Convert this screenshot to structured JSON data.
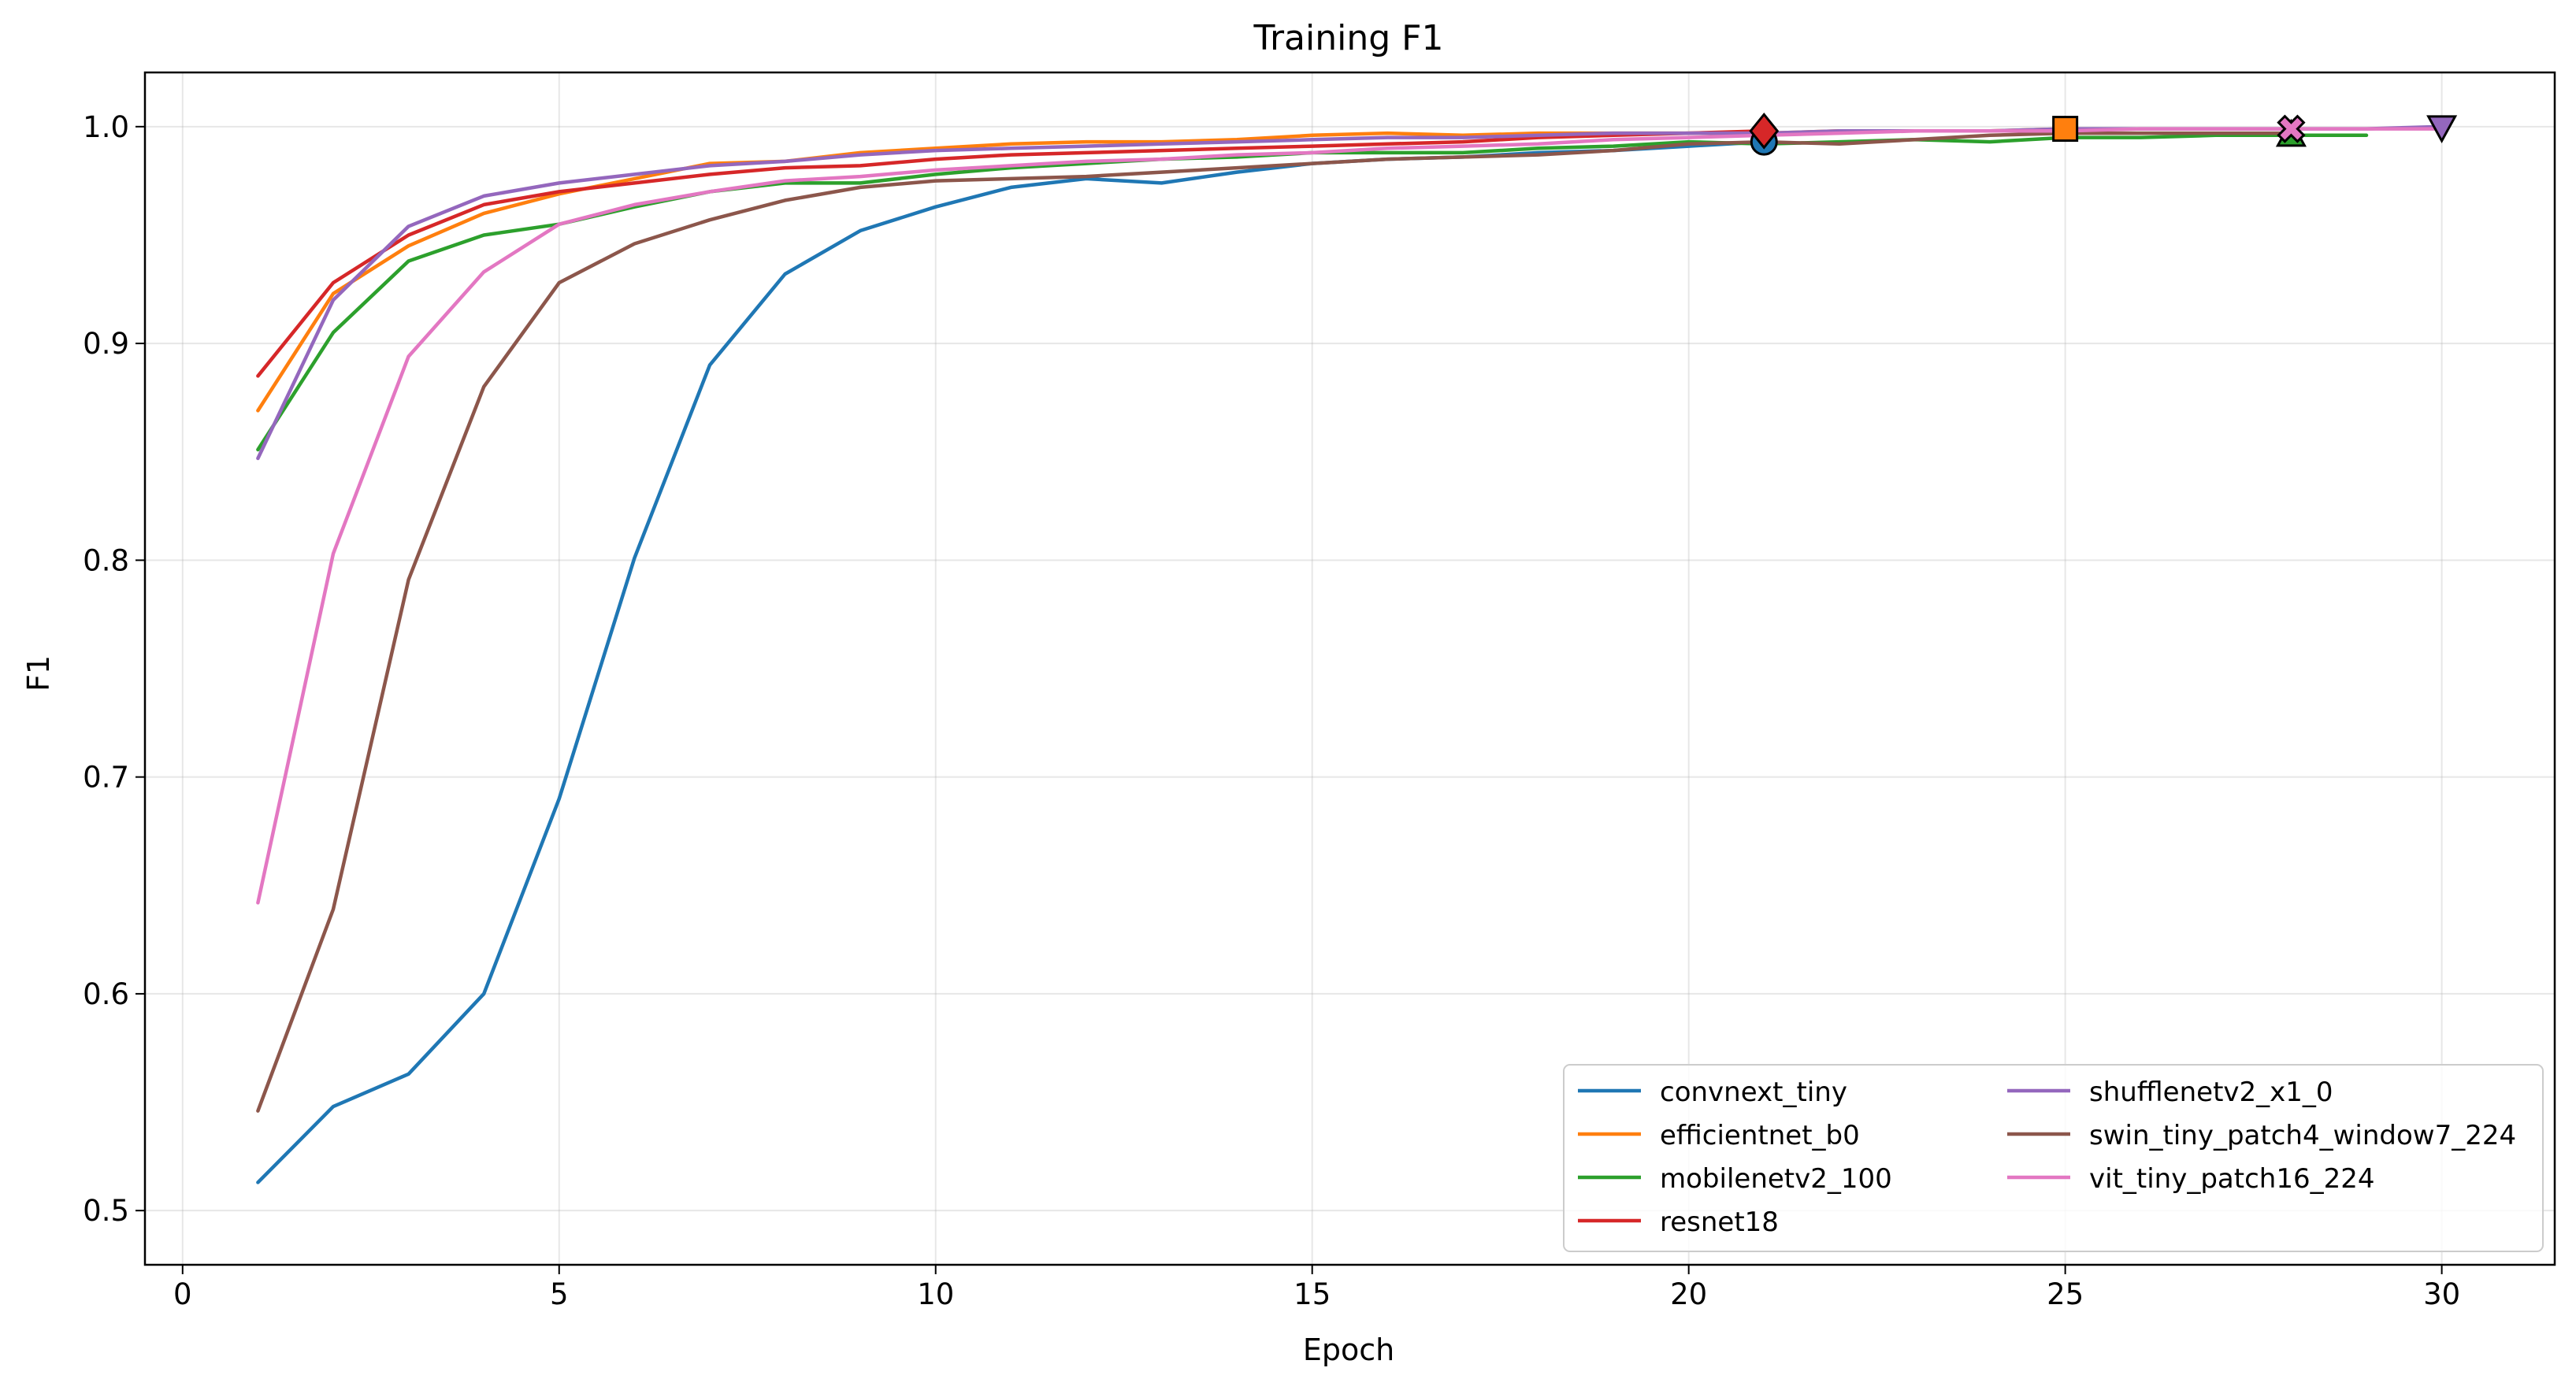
{
  "chart_data": {
    "type": "line",
    "title": "Training F1",
    "xlabel": "Epoch",
    "ylabel": "F1",
    "xlim": [
      -0.5,
      31.5
    ],
    "ylim": [
      0.475,
      1.025
    ],
    "xticks": [
      0,
      5,
      10,
      15,
      20,
      25,
      30
    ],
    "yticks": [
      0.5,
      0.6,
      0.7,
      0.8,
      0.9,
      1.0
    ],
    "xtick_labels": [
      "0",
      "5",
      "10",
      "15",
      "20",
      "25",
      "30"
    ],
    "ytick_labels": [
      "0.5",
      "0.6",
      "0.7",
      "0.8",
      "0.9",
      "1.0"
    ],
    "grid": true,
    "legend_position": "lower-right",
    "legend_columns": 2,
    "series": [
      {
        "name": "convnext_tiny",
        "color": "#1f77b4",
        "marker": "circle",
        "best_epoch": 21,
        "x": [
          1,
          2,
          3,
          4,
          5,
          6,
          7,
          8,
          9,
          10,
          11,
          12,
          13,
          14,
          15,
          16,
          17,
          18,
          19,
          20,
          21
        ],
        "values": [
          0.513,
          0.548,
          0.563,
          0.6,
          0.69,
          0.801,
          0.89,
          0.932,
          0.952,
          0.963,
          0.972,
          0.976,
          0.974,
          0.979,
          0.983,
          0.985,
          0.986,
          0.988,
          0.989,
          0.991,
          0.993
        ]
      },
      {
        "name": "efficientnet_b0",
        "color": "#ff7f0e",
        "marker": "square",
        "best_epoch": 25,
        "x": [
          1,
          2,
          3,
          4,
          5,
          6,
          7,
          8,
          9,
          10,
          11,
          12,
          13,
          14,
          15,
          16,
          17,
          18,
          19,
          20,
          21,
          22,
          23,
          24,
          25
        ],
        "values": [
          0.869,
          0.923,
          0.945,
          0.96,
          0.969,
          0.976,
          0.983,
          0.984,
          0.988,
          0.99,
          0.992,
          0.993,
          0.993,
          0.994,
          0.996,
          0.997,
          0.996,
          0.997,
          0.997,
          0.997,
          0.997,
          0.998,
          0.998,
          0.998,
          0.999
        ]
      },
      {
        "name": "mobilenetv2_100",
        "color": "#2ca02c",
        "marker": "triangle-up",
        "best_epoch": 28,
        "x": [
          1,
          2,
          3,
          4,
          5,
          6,
          7,
          8,
          9,
          10,
          11,
          12,
          13,
          14,
          15,
          16,
          17,
          18,
          19,
          20,
          21,
          22,
          23,
          24,
          25,
          26,
          27,
          28,
          29
        ],
        "values": [
          0.851,
          0.905,
          0.938,
          0.95,
          0.955,
          0.963,
          0.97,
          0.974,
          0.974,
          0.978,
          0.981,
          0.983,
          0.985,
          0.986,
          0.988,
          0.988,
          0.988,
          0.99,
          0.991,
          0.993,
          0.992,
          0.993,
          0.994,
          0.993,
          0.995,
          0.995,
          0.996,
          0.996,
          0.996
        ]
      },
      {
        "name": "resnet18",
        "color": "#d62728",
        "marker": "diamond",
        "best_epoch": 21,
        "x": [
          1,
          2,
          3,
          4,
          5,
          6,
          7,
          8,
          9,
          10,
          11,
          12,
          13,
          14,
          15,
          16,
          17,
          18,
          19,
          20,
          21
        ],
        "values": [
          0.885,
          0.928,
          0.95,
          0.964,
          0.97,
          0.974,
          0.978,
          0.981,
          0.982,
          0.985,
          0.987,
          0.988,
          0.989,
          0.99,
          0.991,
          0.992,
          0.993,
          0.995,
          0.996,
          0.997,
          0.998
        ]
      },
      {
        "name": "shufflenetv2_x1_0",
        "color": "#9467bd",
        "marker": "triangle-down",
        "best_epoch": 30,
        "x": [
          1,
          2,
          3,
          4,
          5,
          6,
          7,
          8,
          9,
          10,
          11,
          12,
          13,
          14,
          15,
          16,
          17,
          18,
          19,
          20,
          21,
          22,
          23,
          24,
          25,
          26,
          27,
          28,
          29,
          30
        ],
        "values": [
          0.847,
          0.92,
          0.954,
          0.968,
          0.974,
          0.978,
          0.982,
          0.984,
          0.987,
          0.989,
          0.99,
          0.991,
          0.992,
          0.993,
          0.994,
          0.995,
          0.995,
          0.996,
          0.997,
          0.997,
          0.997,
          0.998,
          0.998,
          0.998,
          0.999,
          0.999,
          0.999,
          0.999,
          0.999,
          1.0
        ]
      },
      {
        "name": "swin_tiny_patch4_window7_224",
        "color": "#8c564b",
        "marker": "none",
        "best_epoch": 28,
        "x": [
          1,
          2,
          3,
          4,
          5,
          6,
          7,
          8,
          9,
          10,
          11,
          12,
          13,
          14,
          15,
          16,
          17,
          18,
          19,
          20,
          21,
          22,
          23,
          24,
          25,
          26,
          27,
          28
        ],
        "values": [
          0.546,
          0.639,
          0.791,
          0.88,
          0.928,
          0.946,
          0.957,
          0.966,
          0.972,
          0.975,
          0.976,
          0.977,
          0.979,
          0.981,
          0.983,
          0.985,
          0.986,
          0.987,
          0.989,
          0.992,
          0.993,
          0.992,
          0.994,
          0.996,
          0.997,
          0.997,
          0.997,
          0.997
        ]
      },
      {
        "name": "vit_tiny_patch16_224",
        "color": "#e377c2",
        "marker": "x",
        "best_epoch": 28,
        "x": [
          1,
          2,
          3,
          4,
          5,
          6,
          7,
          8,
          9,
          10,
          11,
          12,
          13,
          14,
          15,
          16,
          17,
          18,
          19,
          20,
          21,
          22,
          23,
          24,
          25,
          26,
          27,
          28,
          29,
          30
        ],
        "values": [
          0.642,
          0.803,
          0.894,
          0.933,
          0.955,
          0.964,
          0.97,
          0.975,
          0.977,
          0.98,
          0.982,
          0.984,
          0.985,
          0.987,
          0.988,
          0.99,
          0.991,
          0.992,
          0.994,
          0.995,
          0.996,
          0.997,
          0.998,
          0.998,
          0.998,
          0.999,
          0.999,
          0.999,
          0.999,
          0.999
        ]
      }
    ]
  }
}
